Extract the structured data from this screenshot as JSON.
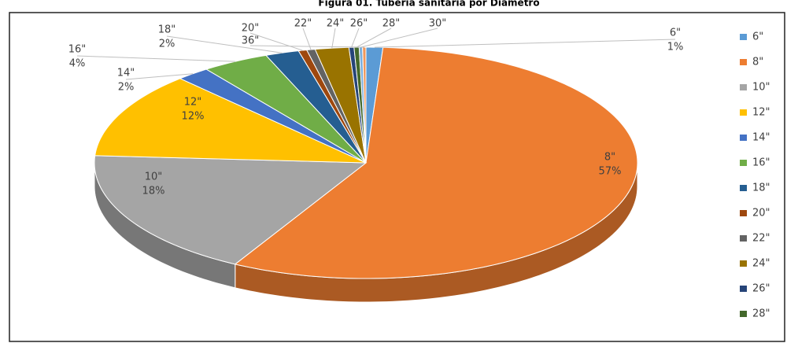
{
  "chart_data": {
    "type": "pie",
    "title": "Figura 01. Tubería sanitaria por Diámetro",
    "categories": [
      "6\"",
      "8\"",
      "10\"",
      "12\"",
      "14\"",
      "16\"",
      "18\"",
      "20\"",
      "22\"",
      "24\"",
      "26\"",
      "28\"",
      "30\"",
      "36\""
    ],
    "values": [
      1,
      57,
      18,
      12,
      2,
      4,
      2,
      0.5,
      0.5,
      2,
      0.3,
      0.3,
      0.2,
      0.2
    ],
    "value_labels": [
      "1%",
      "57%",
      "18%",
      "12%",
      "2%",
      "4%",
      "2%",
      null,
      null,
      null,
      null,
      null,
      null,
      null
    ],
    "colors": [
      "#5b9bd5",
      "#ed7d31",
      "#a5a5a5",
      "#ffc000",
      "#4472c4",
      "#70ad47",
      "#255e91",
      "#9e480e",
      "#636363",
      "#997300",
      "#264478",
      "#43682b",
      "#7cafdd",
      "#f1975a"
    ],
    "legend": "right"
  }
}
